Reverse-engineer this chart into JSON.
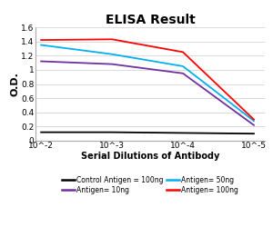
{
  "title": "ELISA Result",
  "xlabel": "Serial Dilutions of Antibody",
  "ylabel": "O.D.",
  "x_values": [
    0.01,
    0.001,
    0.0001,
    1e-05
  ],
  "lines": [
    {
      "key": "control",
      "label": "Control Antigen = 100ng",
      "color": "#000000",
      "y": [
        0.12,
        0.12,
        0.11,
        0.1
      ]
    },
    {
      "key": "antigen_10ng",
      "label": "Antigen= 10ng",
      "color": "#7030A0",
      "y": [
        1.12,
        1.08,
        0.95,
        0.22
      ]
    },
    {
      "key": "antigen_50ng",
      "label": "Antigen= 50ng",
      "color": "#00B0F0",
      "y": [
        1.35,
        1.22,
        1.05,
        0.28
      ]
    },
    {
      "key": "antigen_100ng",
      "label": "Antigen= 100ng",
      "color": "#FF0000",
      "y": [
        1.42,
        1.43,
        1.25,
        0.3
      ]
    }
  ],
  "ylim": [
    0,
    1.6
  ],
  "yticks": [
    0,
    0.2,
    0.4,
    0.6,
    0.8,
    1.0,
    1.2,
    1.4,
    1.6
  ],
  "ytick_labels": [
    "0",
    "0.2",
    "0.4",
    "0.6",
    "0.8",
    "1",
    "1.2",
    "1.4",
    "1.6"
  ],
  "xtick_values": [
    0.01,
    0.001,
    0.0001,
    1e-05
  ],
  "xtick_labels": [
    "10^-2",
    "10^-3",
    "10^-4",
    "10^-5"
  ],
  "background_color": "#ffffff",
  "title_fontsize": 10,
  "axis_label_fontsize": 7,
  "tick_fontsize": 6.5,
  "legend_fontsize": 5.5,
  "linewidth": 1.3,
  "grid_color": "#cccccc",
  "legend_order": [
    "control",
    "antigen_10ng",
    "antigen_50ng",
    "antigen_100ng"
  ]
}
